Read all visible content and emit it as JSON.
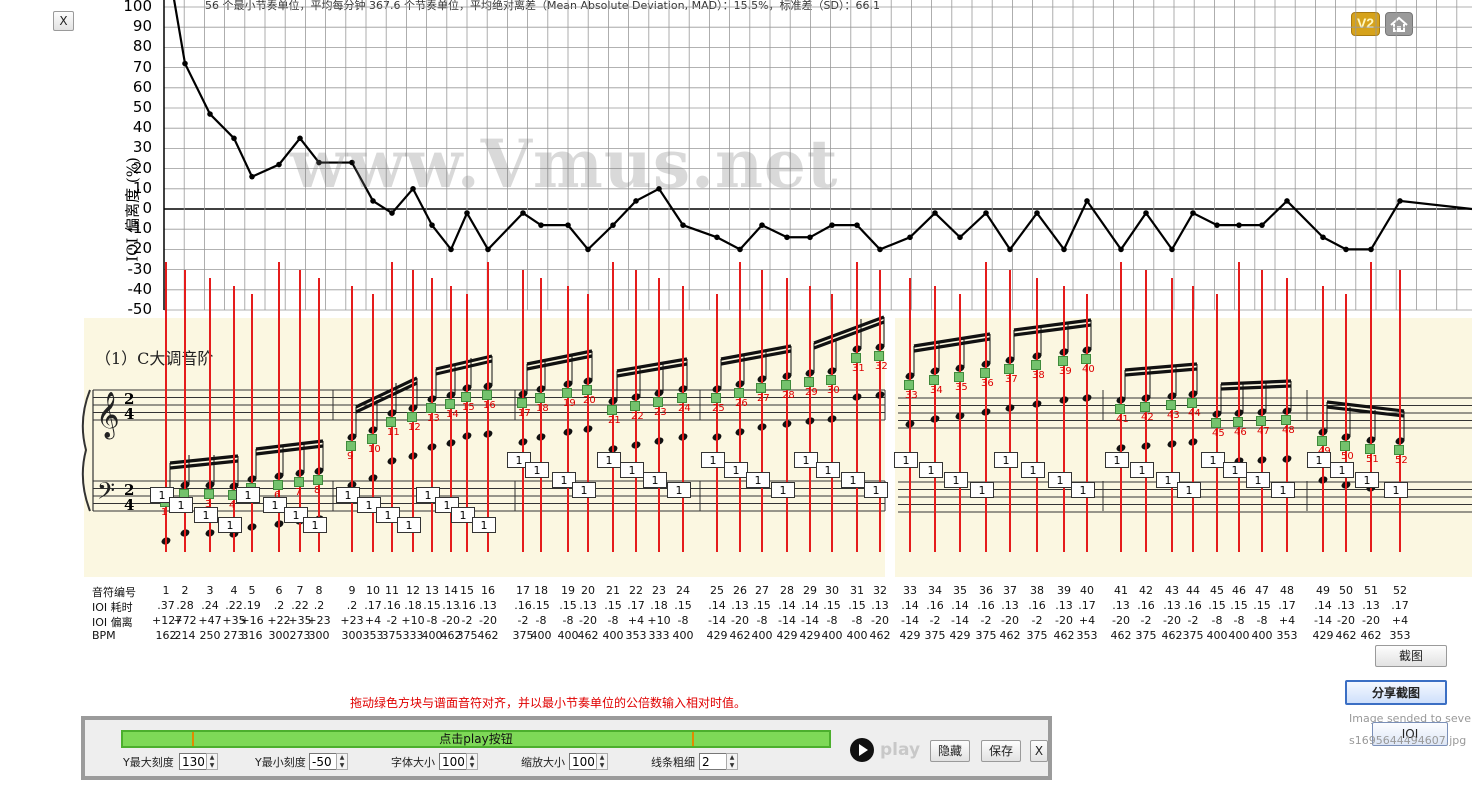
{
  "window": {
    "close_label": "X"
  },
  "stats_text": "56 个最小节奏单位，平均每分钟 367.6 个节奏单位，平均绝对离差（Mean Absolute Deviation, MAD）：15.5%，标准差（SD）：66.1",
  "watermark": "www.Vmus.net",
  "badges": {
    "v2": "V2"
  },
  "chart_data": {
    "type": "line",
    "ylabel": "IOI 偏离度 (%)",
    "ylim": [
      -50,
      100
    ],
    "yticks": [
      100,
      90,
      80,
      70,
      60,
      50,
      40,
      30,
      20,
      10,
      0,
      -10,
      -20,
      -30,
      -40,
      -50
    ],
    "grid": true,
    "series": [
      {
        "values": [
          127,
          72,
          47,
          35,
          16,
          22,
          35,
          23,
          23,
          4,
          -2,
          10,
          -8,
          -20,
          -2,
          -20,
          -2,
          -8,
          -8,
          -20,
          -8,
          4,
          10,
          -8,
          -14,
          -20,
          -8,
          -14,
          -14,
          -8,
          -8,
          -20,
          -14,
          -2,
          -14,
          -2,
          -20,
          -2,
          -20,
          4,
          -20,
          -2,
          -20,
          -2,
          -8,
          -8,
          -8,
          4,
          -14,
          -20,
          -20,
          4,
          0
        ]
      }
    ]
  },
  "score": {
    "title": "（1）C大调音阶"
  },
  "table": {
    "row_labels": [
      "音符编号",
      "IOI 耗时",
      "IOI 偏离",
      "BPM"
    ],
    "columns": [
      {
        "n": "1",
        "t": ".37",
        "d": "+127",
        "b": "162"
      },
      {
        "n": "2",
        "t": ".28",
        "d": "+72",
        "b": "214"
      },
      {
        "n": "3",
        "t": ".24",
        "d": "+47",
        "b": "250"
      },
      {
        "n": "4",
        "t": ".22",
        "d": "+35",
        "b": "273"
      },
      {
        "n": "5",
        "t": ".19",
        "d": "+16",
        "b": "316"
      },
      {
        "n": "6",
        "t": ".2",
        "d": "+22",
        "b": "300"
      },
      {
        "n": "7",
        "t": ".22",
        "d": "+35",
        "b": "273"
      },
      {
        "n": "8",
        "t": ".2",
        "d": "+23",
        "b": "300"
      },
      {
        "n": "9",
        "t": ".2",
        "d": "+23",
        "b": "300"
      },
      {
        "n": "10",
        "t": ".17",
        "d": "+4",
        "b": "353"
      },
      {
        "n": "11",
        "t": ".16",
        "d": "-2",
        "b": "375"
      },
      {
        "n": "12",
        "t": ".18",
        "d": "+10",
        "b": "333"
      },
      {
        "n": "13",
        "t": ".15",
        "d": "-8",
        "b": "400"
      },
      {
        "n": "14",
        "t": ".13",
        "d": "-20",
        "b": "462"
      },
      {
        "n": "15",
        "t": ".16",
        "d": "-2",
        "b": "375"
      },
      {
        "n": "16",
        "t": ".13",
        "d": "-20",
        "b": "462"
      },
      {
        "n": "17",
        "t": ".16",
        "d": "-2",
        "b": "375"
      },
      {
        "n": "18",
        "t": ".15",
        "d": "-8",
        "b": "400"
      },
      {
        "n": "19",
        "t": ".15",
        "d": "-8",
        "b": "400"
      },
      {
        "n": "20",
        "t": ".13",
        "d": "-20",
        "b": "462"
      },
      {
        "n": "21",
        "t": ".15",
        "d": "-8",
        "b": "400"
      },
      {
        "n": "22",
        "t": ".17",
        "d": "+4",
        "b": "353"
      },
      {
        "n": "23",
        "t": ".18",
        "d": "+10",
        "b": "333"
      },
      {
        "n": "24",
        "t": ".15",
        "d": "-8",
        "b": "400"
      },
      {
        "n": "25",
        "t": ".14",
        "d": "-14",
        "b": "429"
      },
      {
        "n": "26",
        "t": ".13",
        "d": "-20",
        "b": "462"
      },
      {
        "n": "27",
        "t": ".15",
        "d": "-8",
        "b": "400"
      },
      {
        "n": "28",
        "t": ".14",
        "d": "-14",
        "b": "429"
      },
      {
        "n": "29",
        "t": ".14",
        "d": "-14",
        "b": "429"
      },
      {
        "n": "30",
        "t": ".15",
        "d": "-8",
        "b": "400"
      },
      {
        "n": "31",
        "t": ".15",
        "d": "-8",
        "b": "400"
      },
      {
        "n": "32",
        "t": ".13",
        "d": "-20",
        "b": "462"
      },
      {
        "n": "33",
        "t": ".14",
        "d": "-14",
        "b": "429"
      },
      {
        "n": "34",
        "t": ".16",
        "d": "-2",
        "b": "375"
      },
      {
        "n": "35",
        "t": ".14",
        "d": "-14",
        "b": "429"
      },
      {
        "n": "36",
        "t": ".16",
        "d": "-2",
        "b": "375"
      },
      {
        "n": "37",
        "t": ".13",
        "d": "-20",
        "b": "462"
      },
      {
        "n": "38",
        "t": ".16",
        "d": "-2",
        "b": "375"
      },
      {
        "n": "39",
        "t": ".13",
        "d": "-20",
        "b": "462"
      },
      {
        "n": "40",
        "t": ".17",
        "d": "+4",
        "b": "353"
      },
      {
        "n": "41",
        "t": ".13",
        "d": "-20",
        "b": "462"
      },
      {
        "n": "42",
        "t": ".16",
        "d": "-2",
        "b": "375"
      },
      {
        "n": "43",
        "t": ".13",
        "d": "-20",
        "b": "462"
      },
      {
        "n": "44",
        "t": ".16",
        "d": "-2",
        "b": "375"
      },
      {
        "n": "45",
        "t": ".15",
        "d": "-8",
        "b": "400"
      },
      {
        "n": "46",
        "t": ".15",
        "d": "-8",
        "b": "400"
      },
      {
        "n": "47",
        "t": ".15",
        "d": "-8",
        "b": "400"
      },
      {
        "n": "48",
        "t": ".17",
        "d": "+4",
        "b": "353"
      },
      {
        "n": "49",
        "t": ".14",
        "d": "-14",
        "b": "429"
      },
      {
        "n": "50",
        "t": ".13",
        "d": "-20",
        "b": "462"
      },
      {
        "n": "51",
        "t": ".13",
        "d": "-20",
        "b": "462"
      },
      {
        "n": "52",
        "t": ".17",
        "d": "+4",
        "b": "353"
      }
    ]
  },
  "hint_text": "拖动绿色方块与谱面音符对齐，并以最小节奏单位的公倍数输入相对时值。",
  "panel": {
    "bar_label": "点击play按钮",
    "play_label": "play",
    "hide_label": "隐藏",
    "save_label": "保存",
    "close_label": "X",
    "controls": [
      {
        "label": "Y最大刻度",
        "value": "130"
      },
      {
        "label": "Y最小刻度",
        "value": "-50"
      },
      {
        "label": "字体大小",
        "value": "100"
      },
      {
        "label": "缩放大小",
        "value": "100"
      },
      {
        "label": "线条粗细",
        "value": "2"
      }
    ]
  },
  "side": {
    "screenshot_label": "截图",
    "share_label": "分享截图",
    "sent_text": "Image sended to sever",
    "file_text": "s1695644494607.jpg",
    "ioi_label": "IOI"
  },
  "note_box_value": "1"
}
